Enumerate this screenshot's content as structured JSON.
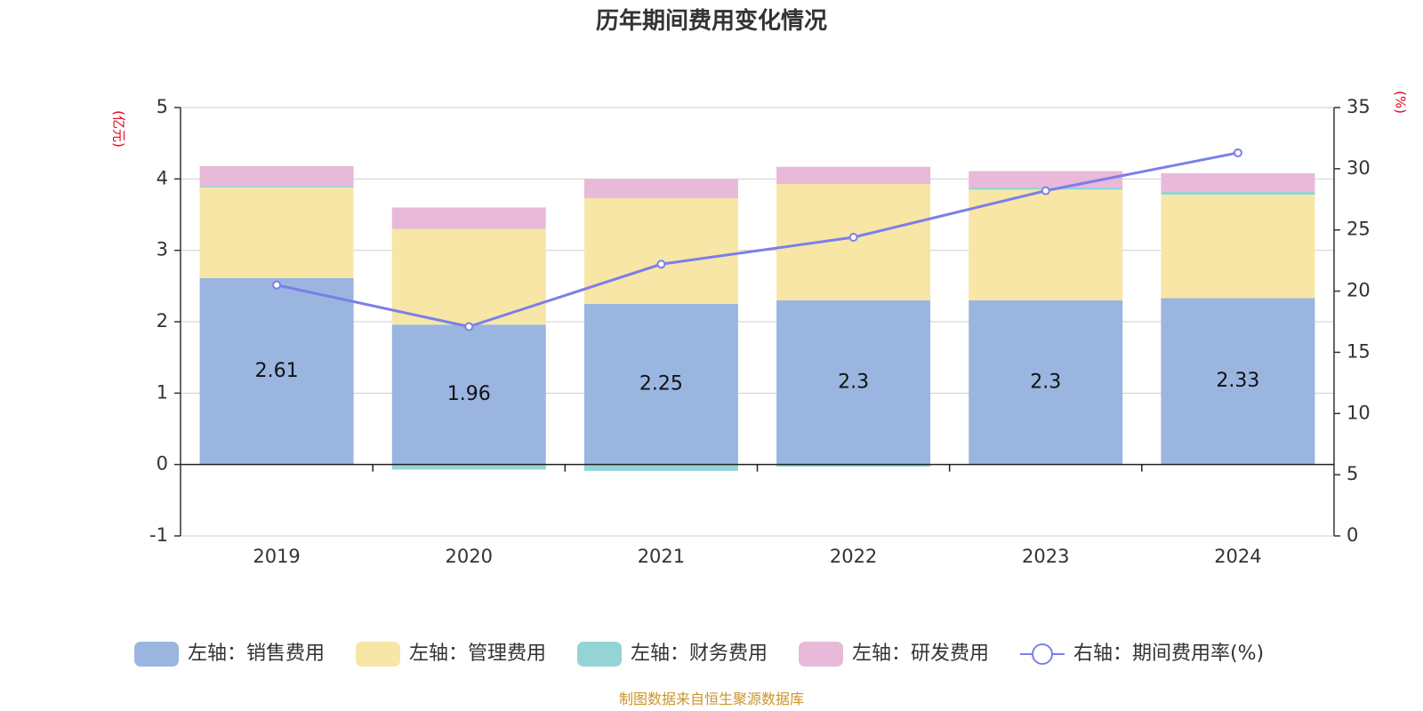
{
  "chart_data": {
    "type": "bar",
    "stacked": true,
    "title": "历年期间费用变化情况",
    "categories": [
      "2019",
      "2020",
      "2021",
      "2022",
      "2023",
      "2024"
    ],
    "left_axis": {
      "unit": "(亿元)",
      "ylim": [
        -1,
        5
      ],
      "ticks": [
        -1,
        0,
        1,
        2,
        3,
        4,
        5
      ]
    },
    "right_axis": {
      "unit": "(%)",
      "ylim": [
        0,
        35
      ],
      "ticks": [
        0,
        5,
        10,
        15,
        20,
        25,
        30,
        35
      ]
    },
    "grid": true,
    "legend_position": "bottom",
    "series": [
      {
        "name": "左轴：销售费用",
        "axis": "left",
        "type": "bar",
        "color": "#9ab6e0",
        "values": [
          2.61,
          1.96,
          2.25,
          2.3,
          2.3,
          2.33
        ],
        "labels": [
          "2.61",
          "1.96",
          "2.25",
          "2.3",
          "2.3",
          "2.33"
        ]
      },
      {
        "name": "左轴：管理费用",
        "axis": "left",
        "type": "bar",
        "color": "#f7e6a6",
        "values": [
          1.27,
          1.34,
          1.48,
          1.63,
          1.55,
          1.45
        ]
      },
      {
        "name": "左轴：财务费用",
        "axis": "left",
        "type": "bar",
        "color": "#95d4d6",
        "values": [
          0.02,
          -0.07,
          -0.09,
          -0.03,
          0.03,
          0.04
        ]
      },
      {
        "name": "左轴：研发费用",
        "axis": "left",
        "type": "bar",
        "color": "#e8b9d9",
        "values": [
          0.28,
          0.3,
          0.27,
          0.24,
          0.23,
          0.26
        ]
      },
      {
        "name": "右轴：期间费用率(%)",
        "axis": "right",
        "type": "line",
        "color": "#7b7fe8",
        "values": [
          20.5,
          17.1,
          22.2,
          24.4,
          28.2,
          31.3
        ]
      }
    ],
    "source": "制图数据来自恒生聚源数据库"
  }
}
